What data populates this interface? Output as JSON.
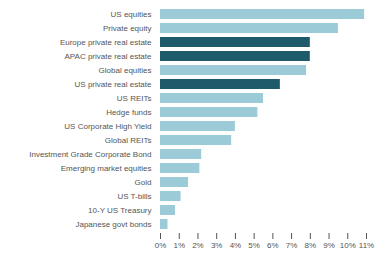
{
  "chart_data": {
    "type": "bar",
    "orientation": "horizontal",
    "categories": [
      "US equities",
      "Private equity",
      "Europe private real estate",
      "APAC private real estate",
      "Global equities",
      "US private real estate",
      "US REITs",
      "Hedge funds",
      "US Corporate High Yield",
      "Global REITs",
      "Investment Grade Corporate Bond",
      "Emerging market equities",
      "Gold",
      "US T-bills",
      "10-Y US Treasury",
      "Japanese govt bonds"
    ],
    "values": [
      10.9,
      9.5,
      8.0,
      8.0,
      7.8,
      6.4,
      5.5,
      5.2,
      4.0,
      3.8,
      2.2,
      2.1,
      1.5,
      1.1,
      0.8,
      0.4
    ],
    "colors": [
      "#9ccbd8",
      "#9ccbd8",
      "#1d5b6b",
      "#1d5b6b",
      "#9ccbd8",
      "#1d5b6b",
      "#9ccbd8",
      "#9ccbd8",
      "#9ccbd8",
      "#9ccbd8",
      "#9ccbd8",
      "#9ccbd8",
      "#9ccbd8",
      "#9ccbd8",
      "#9ccbd8",
      "#9ccbd8"
    ],
    "xlim": [
      0,
      11
    ],
    "xticks": [
      {
        "value": 0,
        "label": "0%"
      },
      {
        "value": 1,
        "label": "1%"
      },
      {
        "value": 2,
        "label": "2%"
      },
      {
        "value": 3,
        "label": "3%"
      },
      {
        "value": 4,
        "label": "4%"
      },
      {
        "value": 5,
        "label": "5%"
      },
      {
        "value": 6,
        "label": "6%"
      },
      {
        "value": 7,
        "label": "7%"
      },
      {
        "value": 8,
        "label": "8%"
      },
      {
        "value": 9,
        "label": "9%"
      },
      {
        "value": 10,
        "label": "10%"
      },
      {
        "value": 11,
        "label": "11%"
      }
    ],
    "grid": false
  }
}
